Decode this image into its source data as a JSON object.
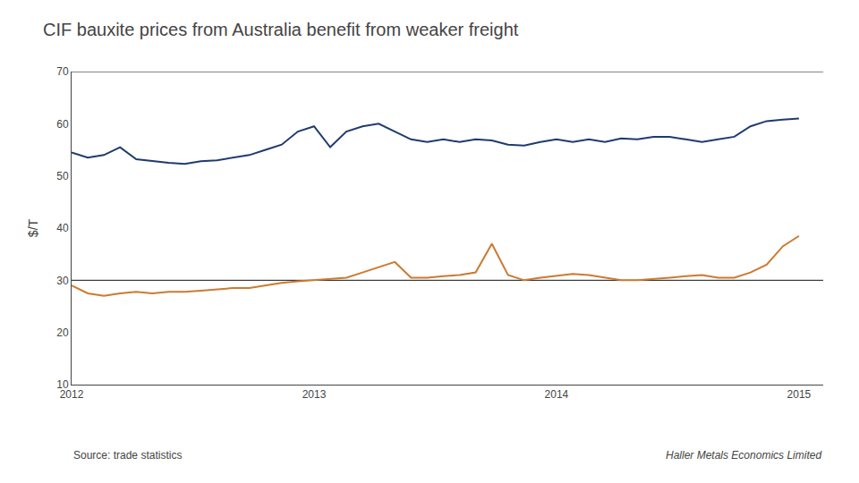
{
  "chart_data": {
    "type": "line",
    "title": "CIF bauxite prices from Australia benefit from weaker freight",
    "ylabel": "$/T",
    "annotations": [
      "Source: trade statistics",
      "Haller Metals Economics Limited"
    ],
    "x": [
      2012,
      2012.0666666667,
      2012.1333333333,
      2012.2,
      2012.2666666667,
      2012.3333333333,
      2012.4,
      2012.4666666667,
      2012.5333333333,
      2012.6,
      2012.6666666667,
      2012.7333333333,
      2012.8,
      2012.8666666667,
      2012.9333333333,
      2013,
      2013.0666666667,
      2013.1333333333,
      2013.2,
      2013.2666666667,
      2013.3333333333,
      2013.4,
      2013.4666666667,
      2013.5333333333,
      2013.6,
      2013.6666666667,
      2013.7333333333,
      2013.8,
      2013.8666666667,
      2013.9333333333,
      2014,
      2014.0666666667,
      2014.1333333333,
      2014.2,
      2014.2666666667,
      2014.3333333333,
      2014.4,
      2014.4666666667,
      2014.5333333333,
      2014.6,
      2014.6666666667,
      2014.7333333333,
      2014.8,
      2014.8666666667,
      2014.9333333333,
      2015
    ],
    "series": [
      {
        "color": "#1F3B6E",
        "values": [
          54.5,
          53.5,
          54.0,
          55.5,
          53.2,
          52.8,
          52.5,
          52.3,
          52.8,
          53.0,
          53.5,
          54.0,
          55.0,
          56.0,
          58.5,
          59.5,
          55.5,
          58.5,
          59.5,
          60.0,
          58.5,
          57.0,
          56.5,
          57.0,
          56.5,
          57.0,
          56.8,
          56.0,
          55.8,
          56.5,
          57.0,
          56.5,
          57.0,
          56.5,
          57.2,
          57.0,
          57.5,
          57.5,
          57.0,
          56.5,
          57.0,
          57.5,
          59.5,
          60.5,
          60.8,
          61.0
        ]
      },
      {
        "color": "#CC7A30",
        "values": [
          29.0,
          27.5,
          27.0,
          27.5,
          27.8,
          27.5,
          27.8,
          27.8,
          28.0,
          28.2,
          28.5,
          28.5,
          29.0,
          29.5,
          29.8,
          30.0,
          30.2,
          30.5,
          31.5,
          32.5,
          33.5,
          30.5,
          30.5,
          30.8,
          31.0,
          31.5,
          37.0,
          31.0,
          30.0,
          30.5,
          30.8,
          31.2,
          31.0,
          30.5,
          30.0,
          30.0,
          30.2,
          30.5,
          30.8,
          31.0,
          30.5,
          30.5,
          31.5,
          33.0,
          36.5,
          38.5
        ]
      }
    ],
    "hlines": {
      "values": [
        30,
        70
      ],
      "color": "#111111"
    },
    "xlim": [
      2012,
      2015.1
    ],
    "xticks": [
      2012,
      2013,
      2014,
      2015
    ],
    "ylim": [
      10,
      70
    ],
    "yticks": [
      10,
      20,
      30,
      40,
      50,
      60,
      70
    ],
    "grid": false
  }
}
